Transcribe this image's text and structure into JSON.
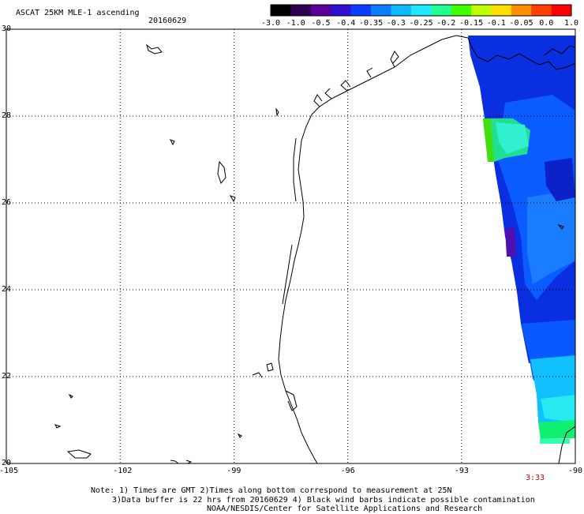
{
  "header": {
    "title": "ASCAT 25KM MLE-1 ascending",
    "date": "20160629"
  },
  "colorbar": {
    "labels": [
      "-3.0",
      "-1.0",
      "-0.5",
      "-0.4",
      "-0.35",
      "-0.3",
      "-0.25",
      "-0.2",
      "-0.15",
      "-0.1",
      "-0.05",
      "0.0",
      "1.0"
    ],
    "colors": [
      "#000000",
      "#2e0050",
      "#5a0098",
      "#3010d0",
      "#0a3cff",
      "#0a7cff",
      "#10b8ff",
      "#20e8ff",
      "#20ff90",
      "#40ff00",
      "#c0ff00",
      "#ffe000",
      "#ff9000",
      "#ff4000",
      "#ff0000"
    ]
  },
  "axes": {
    "lon_labels": [
      "-105",
      "-102",
      "-99",
      "-96",
      "-93",
      "-90"
    ],
    "lat_labels": [
      "30",
      "28",
      "26",
      "24",
      "22",
      "20"
    ],
    "lon_range": [
      -105,
      -90
    ],
    "lat_range": [
      20,
      30
    ],
    "grid": "dotted"
  },
  "time_marker": {
    "label": "3:33",
    "color": "#cc0000"
  },
  "notes": {
    "line1": "Note: 1) Times are GMT 2)Times along bottom correspond to measurement at 25N",
    "line2": "3)Data buffer is 22 hrs from 20160629 4) Black wind barbs indicate possible contamination",
    "line3": "NOAA/NESDIS/Center for Satellite Applications and Research"
  }
}
